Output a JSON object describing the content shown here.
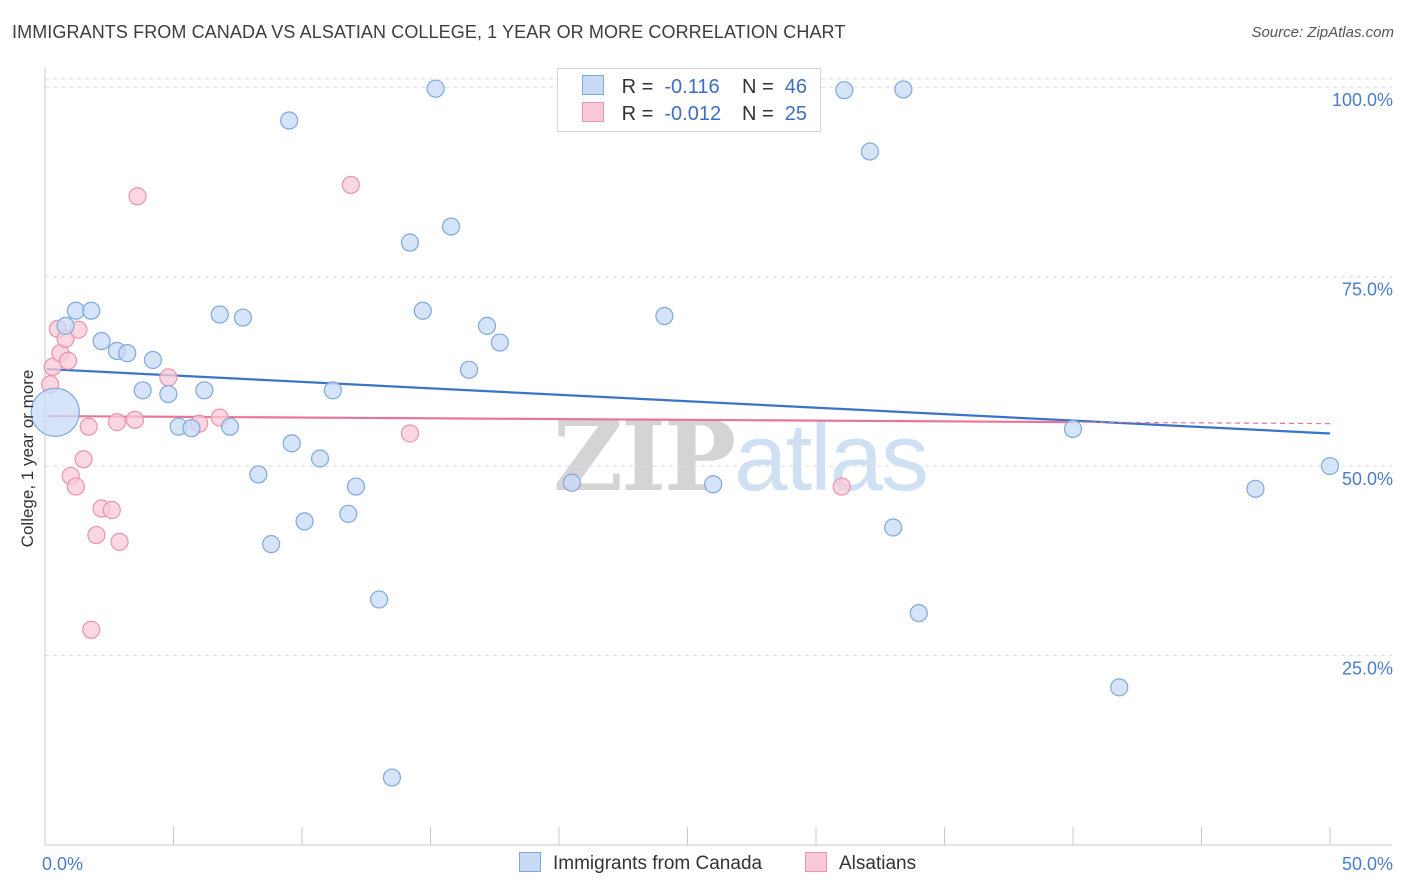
{
  "header": {
    "title": "IMMIGRANTS FROM CANADA VS ALSATIAN COLLEGE, 1 YEAR OR MORE CORRELATION CHART",
    "source": "Source: ZipAtlas.com"
  },
  "watermark": {
    "zip": "ZIP",
    "atlas": "atlas"
  },
  "legend": {
    "rows": [
      {
        "r_label": "R =",
        "r_value": "-0.116",
        "n_label": "N =",
        "n_value": "46"
      },
      {
        "r_label": "R =",
        "r_value": "-0.012",
        "n_label": "N =",
        "n_value": "25"
      }
    ]
  },
  "bottom_legend": {
    "series1": "Immigrants from Canada",
    "series2": "Alsatians"
  },
  "colors": {
    "blue_fill": "#c7dbf5",
    "blue_stroke": "#7fa8dd",
    "blue_line": "#3a74c8",
    "pink_fill": "#f8c9d7",
    "pink_stroke": "#eb93ae",
    "pink_line": "#e8749a",
    "grid": "#d8dde6",
    "axis": "#c4c9d1",
    "tick_text": "#4a7cc7"
  },
  "chart_data": {
    "type": "scatter",
    "title": "IMMIGRANTS FROM CANADA VS ALSATIAN COLLEGE, 1 YEAR OR MORE CORRELATION CHART",
    "xlabel": "",
    "ylabel": "College, 1 year or more",
    "xlim": [
      0,
      50
    ],
    "ylim": [
      0,
      102
    ],
    "x_tick_labels": [
      "0.0%",
      "50.0%"
    ],
    "y_ticks": [
      25,
      50,
      75,
      100
    ],
    "y_tick_labels": [
      "25.0%",
      "50.0%",
      "75.0%",
      "100.0%"
    ],
    "grid": true,
    "legend_position": "top-center",
    "series": [
      {
        "name": "Immigrants from Canada",
        "r": -0.116,
        "n": 46,
        "trend": {
          "x": [
            0,
            50
          ],
          "y": [
            62.8,
            54.3
          ]
        },
        "points": [
          {
            "x": 0.4,
            "y": 57.1,
            "big": true
          },
          {
            "x": 0.8,
            "y": 68.5
          },
          {
            "x": 1.2,
            "y": 70.5
          },
          {
            "x": 1.8,
            "y": 70.5
          },
          {
            "x": 2.2,
            "y": 66.5
          },
          {
            "x": 2.8,
            "y": 65.2
          },
          {
            "x": 3.2,
            "y": 64.9
          },
          {
            "x": 3.8,
            "y": 60.0
          },
          {
            "x": 4.2,
            "y": 64.0
          },
          {
            "x": 4.8,
            "y": 59.5
          },
          {
            "x": 5.2,
            "y": 55.2
          },
          {
            "x": 5.7,
            "y": 55.0
          },
          {
            "x": 6.2,
            "y": 60.0
          },
          {
            "x": 6.8,
            "y": 70.0
          },
          {
            "x": 7.2,
            "y": 55.2
          },
          {
            "x": 7.7,
            "y": 69.6
          },
          {
            "x": 8.3,
            "y": 48.9
          },
          {
            "x": 8.8,
            "y": 39.7
          },
          {
            "x": 9.5,
            "y": 95.6
          },
          {
            "x": 9.6,
            "y": 53.0
          },
          {
            "x": 10.1,
            "y": 42.7
          },
          {
            "x": 10.7,
            "y": 51.0
          },
          {
            "x": 11.2,
            "y": 60.0
          },
          {
            "x": 11.8,
            "y": 43.7
          },
          {
            "x": 12.1,
            "y": 47.3
          },
          {
            "x": 13.0,
            "y": 32.4
          },
          {
            "x": 13.5,
            "y": 8.9
          },
          {
            "x": 14.2,
            "y": 79.5
          },
          {
            "x": 14.7,
            "y": 70.5
          },
          {
            "x": 15.2,
            "y": 99.8
          },
          {
            "x": 15.8,
            "y": 81.6
          },
          {
            "x": 16.5,
            "y": 62.7
          },
          {
            "x": 17.2,
            "y": 68.5
          },
          {
            "x": 17.7,
            "y": 66.3
          },
          {
            "x": 20.5,
            "y": 47.8
          },
          {
            "x": 24.1,
            "y": 69.8
          },
          {
            "x": 26.0,
            "y": 47.6
          },
          {
            "x": 31.1,
            "y": 99.6
          },
          {
            "x": 32.1,
            "y": 91.5
          },
          {
            "x": 33.4,
            "y": 99.7
          },
          {
            "x": 33.0,
            "y": 41.9
          },
          {
            "x": 34.0,
            "y": 30.6
          },
          {
            "x": 40.0,
            "y": 54.9
          },
          {
            "x": 41.8,
            "y": 20.8
          },
          {
            "x": 47.1,
            "y": 47.0
          },
          {
            "x": 50.0,
            "y": 50.0
          }
        ]
      },
      {
        "name": "Alsatians",
        "r": -0.012,
        "n": 25,
        "trend": {
          "x": [
            0,
            40
          ],
          "y": [
            56.6,
            55.8
          ]
        },
        "points": [
          {
            "x": 0.2,
            "y": 60.8
          },
          {
            "x": 0.3,
            "y": 63.1
          },
          {
            "x": 0.5,
            "y": 68.1
          },
          {
            "x": 0.6,
            "y": 64.9
          },
          {
            "x": 0.8,
            "y": 66.8
          },
          {
            "x": 0.9,
            "y": 63.9
          },
          {
            "x": 1.0,
            "y": 48.7
          },
          {
            "x": 1.2,
            "y": 47.3
          },
          {
            "x": 1.3,
            "y": 68.0
          },
          {
            "x": 1.5,
            "y": 50.9
          },
          {
            "x": 1.7,
            "y": 55.2
          },
          {
            "x": 1.8,
            "y": 28.4
          },
          {
            "x": 2.0,
            "y": 40.9
          },
          {
            "x": 2.2,
            "y": 44.4
          },
          {
            "x": 2.6,
            "y": 44.2
          },
          {
            "x": 2.8,
            "y": 55.8
          },
          {
            "x": 2.9,
            "y": 40.0
          },
          {
            "x": 3.5,
            "y": 56.1
          },
          {
            "x": 3.6,
            "y": 85.6
          },
          {
            "x": 4.8,
            "y": 61.7
          },
          {
            "x": 6.0,
            "y": 55.6
          },
          {
            "x": 6.8,
            "y": 56.4
          },
          {
            "x": 11.9,
            "y": 87.1
          },
          {
            "x": 14.2,
            "y": 54.3
          },
          {
            "x": 31.0,
            "y": 47.3
          }
        ]
      }
    ]
  }
}
